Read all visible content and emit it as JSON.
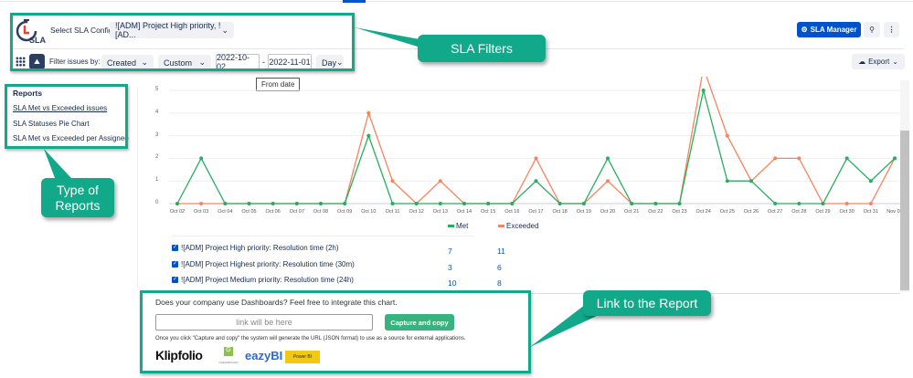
{
  "header": {
    "logo_text": "SLA",
    "config_label": "Select SLA Config",
    "config_value": "![ADM] Project High priority, ![AD...",
    "sla_manager": "SLA Manager",
    "export": "Export"
  },
  "filters": {
    "label": "Filter issues by:",
    "field": "Created",
    "range": "Custom",
    "from": "2022-10-02",
    "sep": "-",
    "to": "2022-11-01",
    "granularity": "Day",
    "tooltip": "From date"
  },
  "reports": {
    "title": "Reports",
    "items": [
      "SLA Met vs Exceeded issues",
      "SLA Statuses Pie Chart",
      "SLA Met vs Exceeded per Assignee"
    ]
  },
  "callouts": {
    "filters": "SLA Filters",
    "types": "Type of Reports",
    "link": "Link to the Report"
  },
  "chart_data": {
    "type": "line",
    "categories": [
      "Oct 02",
      "Oct 03",
      "Oct 04",
      "Oct 05",
      "Oct 06",
      "Oct 07",
      "Oct 08",
      "Oct 09",
      "Oct 10",
      "Oct 11",
      "Oct 12",
      "Oct 13",
      "Oct 14",
      "Oct 15",
      "Oct 16",
      "Oct 17",
      "Oct 18",
      "Oct 19",
      "Oct 20",
      "Oct 21",
      "Oct 22",
      "Oct 23",
      "Oct 24",
      "Oct 25",
      "Oct 26",
      "Oct 27",
      "Oct 28",
      "Oct 29",
      "Oct 30",
      "Oct 31",
      "Nov 01"
    ],
    "yticks": [
      "0",
      "1",
      "2",
      "3",
      "4",
      "5"
    ],
    "ylim": [
      0,
      5
    ],
    "grid": true,
    "legend": "bottom",
    "series": [
      {
        "name": "Met",
        "color": "#27ae60",
        "values": [
          0,
          2,
          0,
          0,
          0,
          0,
          0,
          0,
          3,
          0,
          0,
          0,
          0,
          0,
          0,
          1,
          0,
          0,
          2,
          0,
          0,
          0,
          5,
          1,
          1,
          0,
          0,
          0,
          2,
          1,
          2
        ]
      },
      {
        "name": "Exceeded",
        "color": "#f7845e",
        "values": [
          0,
          0,
          0,
          0,
          0,
          0,
          0,
          0,
          4,
          1,
          0,
          1,
          0,
          0,
          0,
          2,
          0,
          0,
          1,
          0,
          0,
          0,
          6,
          3,
          1,
          2,
          2,
          0,
          0,
          0,
          2
        ]
      }
    ]
  },
  "table": [
    {
      "name": "![ADM] Project High priority: Resolution time (2h)",
      "met": "7",
      "exceeded": "11"
    },
    {
      "name": "![ADM] Project Highest priority: Resolution time (30m)",
      "met": "3",
      "exceeded": "6"
    },
    {
      "name": "![ADM] Project Medium priority: Resolution time (24h)",
      "met": "10",
      "exceeded": "8"
    }
  ],
  "integration": {
    "question": "Does your company use Dashboards? Feel free to integrate this chart.",
    "placeholder": "link will be here",
    "button": "Capture and copy",
    "note": "Once you click \"Capture and copy\" the system will generate the URL (JSON format) to use as a source for external applications.",
    "logos": [
      "Klipfolio",
      "GREENBOARD",
      "eazyBI",
      "Power BI"
    ]
  }
}
